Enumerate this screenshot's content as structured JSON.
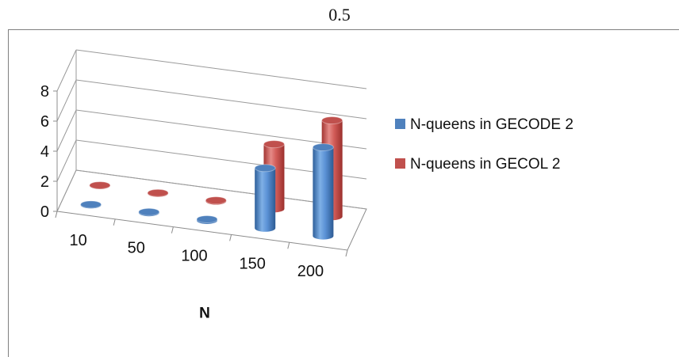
{
  "top_label": "0.5",
  "chart_data": {
    "type": "bar",
    "title": "",
    "xlabel": "N",
    "ylabel": "",
    "categories": [
      "10",
      "50",
      "100",
      "150",
      "200"
    ],
    "ylim": [
      0,
      8
    ],
    "yticks": [
      "0",
      "2",
      "4",
      "6",
      "8"
    ],
    "grid": true,
    "legend_position": "right",
    "series": [
      {
        "name": "N-queens in GECODE 2",
        "color": "#4f81bd",
        "values": [
          0.03,
          0.05,
          0.08,
          4.0,
          5.9
        ]
      },
      {
        "name": "N-queens in GECOL 2",
        "color": "#c0504d",
        "values": [
          0.02,
          0.03,
          0.05,
          4.3,
          6.4
        ]
      }
    ]
  }
}
